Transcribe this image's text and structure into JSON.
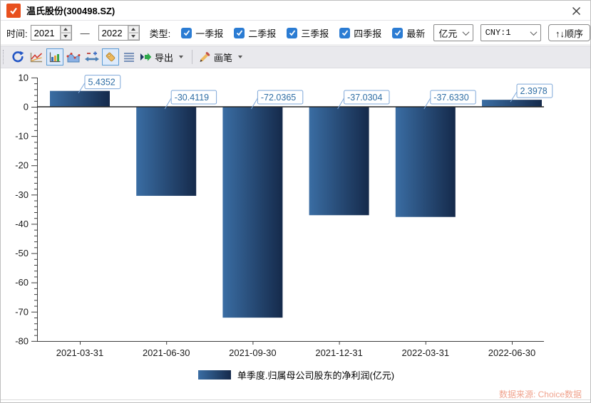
{
  "window": {
    "title": "温氏股份(300498.SZ)"
  },
  "toolbar": {
    "time_label": "时间:",
    "time_from": "2021",
    "range_dash": "—",
    "time_to": "2022",
    "type_label": "类型:",
    "checkboxes": [
      "一季报",
      "二季报",
      "三季报",
      "四季报",
      "最新"
    ],
    "unit_select": "亿元",
    "currency_select": "CNY:1",
    "order_button": "↑↓顺序"
  },
  "iconbar": {
    "export_label": "导出",
    "brush_label": "画笔"
  },
  "chart_data": {
    "type": "bar",
    "title": "",
    "categories": [
      "2021-03-31",
      "2021-06-30",
      "2021-09-30",
      "2021-12-31",
      "2022-03-31",
      "2022-06-30"
    ],
    "values": [
      5.4352,
      -30.4119,
      -72.0365,
      -37.0304,
      -37.633,
      2.3978
    ],
    "value_labels": [
      "5.4352",
      "-30.4119",
      "-72.0365",
      "-37.0304",
      "-37.6330",
      "2.3978"
    ],
    "legend": "单季度.归属母公司股东的净利润(亿元)",
    "xlabel": "",
    "ylabel": "",
    "ylim": [
      -80,
      10
    ],
    "ytick_major": 10,
    "ytick_minor": 2,
    "grid": false,
    "legend_position": "bottom",
    "bar_gradient_start": "#3a6da3",
    "bar_gradient_end": "#152a4b",
    "axis_color": "#3c3c3c",
    "zero_line_color": "#262626",
    "label_box_border": "#7fa8d9",
    "label_text_color": "#2e6da4"
  },
  "footer": {
    "source": "数据来源: Choice数据"
  }
}
